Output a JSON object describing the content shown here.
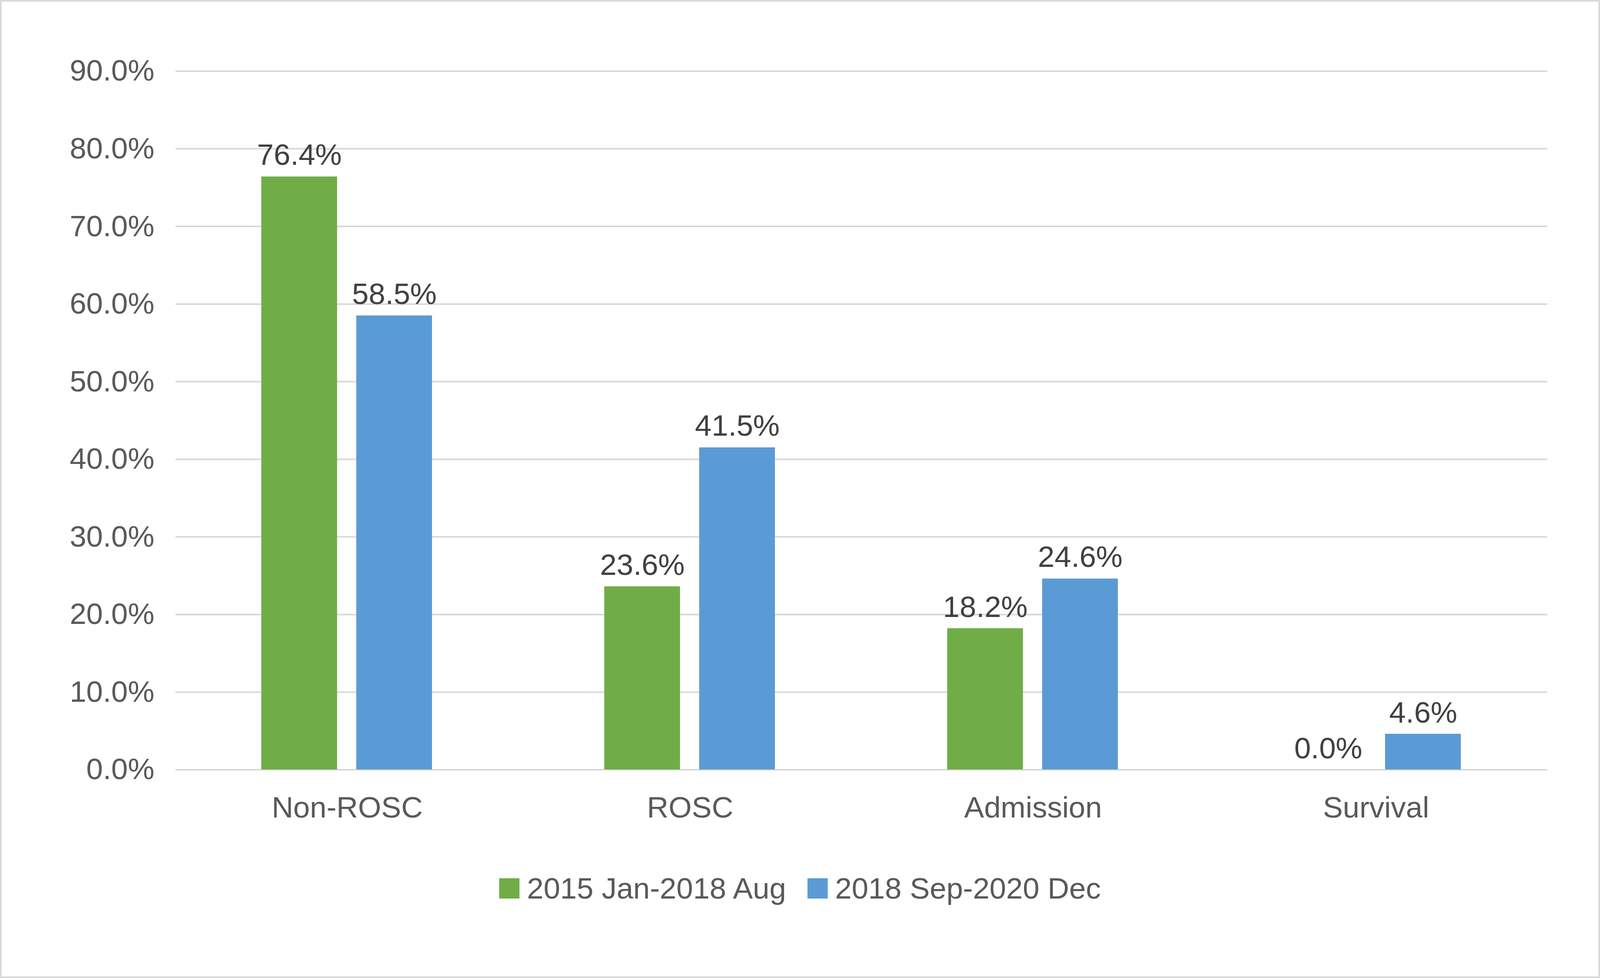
{
  "chart_data": {
    "type": "bar",
    "categories": [
      "Non-ROSC",
      "ROSC",
      "Admission",
      "Survival"
    ],
    "series": [
      {
        "name": "2015 Jan-2018 Aug",
        "color": "#70ad47",
        "values": [
          76.4,
          23.6,
          18.2,
          0.0
        ],
        "value_labels": [
          "76.4%",
          "23.6%",
          "18.2%",
          "0.0%"
        ]
      },
      {
        "name": "2018 Sep-2020 Dec",
        "color": "#5b9bd5",
        "values": [
          58.5,
          41.5,
          24.6,
          4.6
        ],
        "value_labels": [
          "58.5%",
          "41.5%",
          "24.6%",
          "4.6%"
        ]
      }
    ],
    "ylim": [
      0,
      90
    ],
    "yticks": [
      {
        "value": 0,
        "label": "0.0%"
      },
      {
        "value": 10,
        "label": "10.0%"
      },
      {
        "value": 20,
        "label": "20.0%"
      },
      {
        "value": 30,
        "label": "30.0%"
      },
      {
        "value": 40,
        "label": "40.0%"
      },
      {
        "value": 50,
        "label": "50.0%"
      },
      {
        "value": 60,
        "label": "60.0%"
      },
      {
        "value": 70,
        "label": "70.0%"
      },
      {
        "value": 80,
        "label": "80.0%"
      },
      {
        "value": 90,
        "label": "90.0%"
      }
    ],
    "grid": true,
    "legend": "bottom",
    "data_labels": true
  }
}
